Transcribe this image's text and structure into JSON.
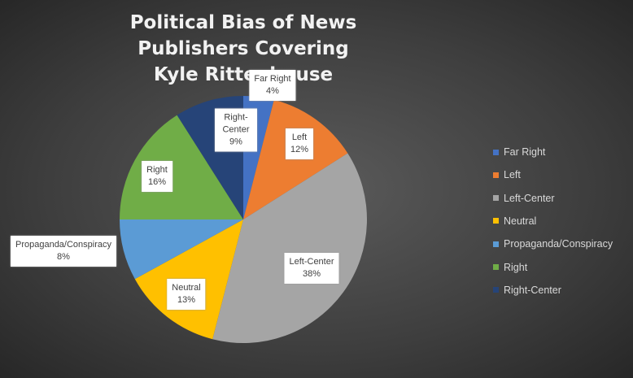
{
  "chart_data": {
    "type": "pie",
    "title": "Political Bias of News Publishers Covering Kyle Rittenhouse",
    "categories": [
      "Far Right",
      "Left",
      "Left-Center",
      "Neutral",
      "Propaganda/Conspiracy",
      "Right",
      "Right-Center"
    ],
    "values": [
      4,
      12,
      38,
      13,
      8,
      16,
      9
    ],
    "value_labels": [
      "4%",
      "12%",
      "38%",
      "13%",
      "8%",
      "16%",
      "9%"
    ],
    "colors": [
      "#4472c4",
      "#ed7d31",
      "#a5a5a5",
      "#ffc000",
      "#5b9bd5",
      "#70ad47",
      "#264478"
    ],
    "legend": "right"
  }
}
